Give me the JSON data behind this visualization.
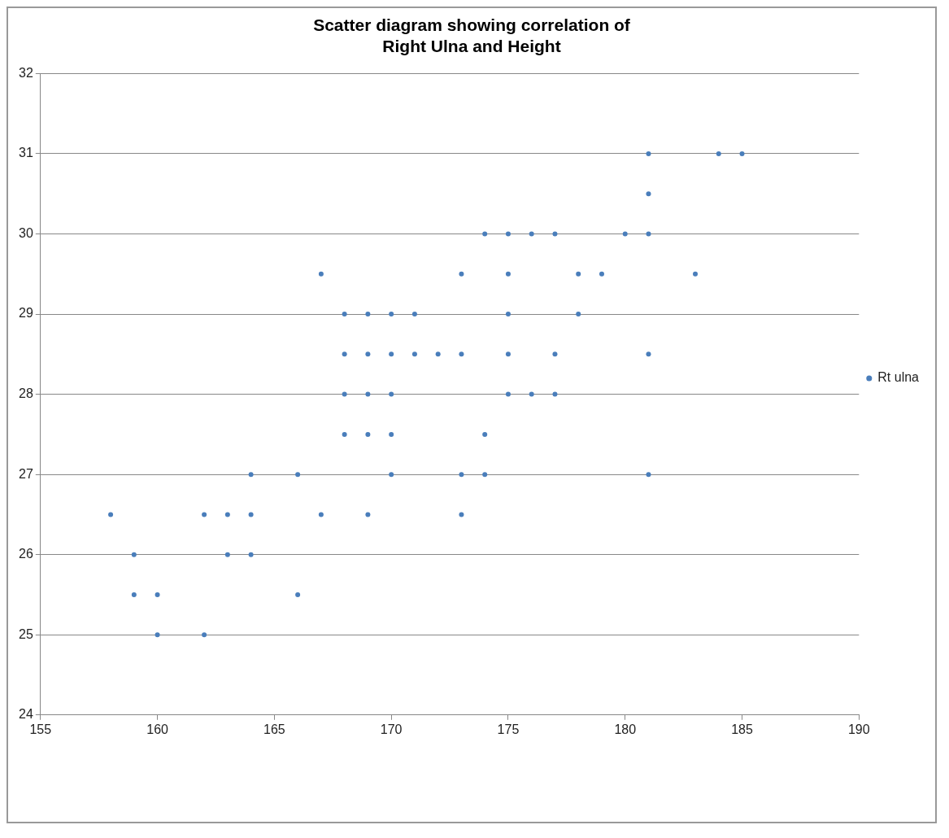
{
  "chart_data": {
    "type": "scatter",
    "title": "Scatter diagram showing correlation of\nRight Ulna and Height",
    "xlim": [
      155,
      190
    ],
    "xticks": [
      155,
      160,
      165,
      170,
      175,
      180,
      185,
      190
    ],
    "ylim": [
      24,
      32
    ],
    "yticks": [
      24,
      25,
      26,
      27,
      28,
      29,
      30,
      31,
      32
    ],
    "grid": "y",
    "legend": "right",
    "marker": "circle",
    "series": [
      {
        "name": "Rt ulna",
        "color": "#4a7ebb",
        "x": [
          158,
          159,
          159,
          160,
          160,
          162,
          162,
          163,
          163,
          164,
          164,
          164,
          166,
          166,
          167,
          167,
          168,
          168,
          168,
          168,
          169,
          169,
          169,
          169,
          169,
          170,
          170,
          170,
          170,
          170,
          171,
          171,
          172,
          173,
          173,
          173,
          173,
          174,
          174,
          174,
          175,
          175,
          175,
          175,
          175,
          176,
          176,
          177,
          177,
          177,
          178,
          178,
          179,
          180,
          181,
          181,
          181,
          181,
          181,
          183,
          184,
          185
        ],
        "values": [
          26.5,
          26,
          25.5,
          25.5,
          25,
          26.5,
          25,
          26.5,
          26,
          27,
          26.5,
          26,
          27,
          25.5,
          29.5,
          26.5,
          29,
          28.5,
          28,
          27.5,
          29,
          28.5,
          28,
          27.5,
          26.5,
          29,
          28.5,
          28,
          27.5,
          27,
          29,
          28.5,
          28.5,
          29.5,
          28.5,
          27,
          26.5,
          30,
          27.5,
          27,
          30,
          29.5,
          29,
          28.5,
          28,
          30,
          28,
          30,
          28.5,
          28,
          29.5,
          29,
          29.5,
          30,
          31,
          30.5,
          30,
          28.5,
          27,
          29.5,
          31,
          31
        ]
      }
    ]
  }
}
